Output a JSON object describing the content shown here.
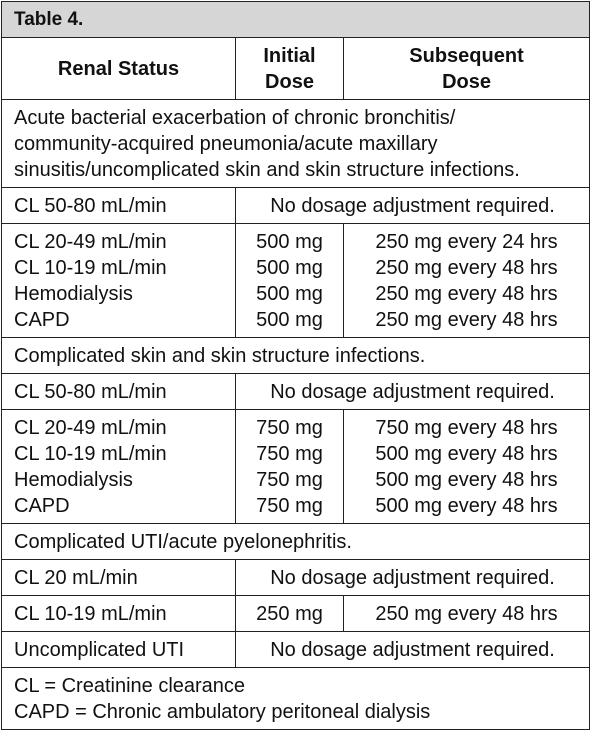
{
  "title": "Table 4.",
  "header": [
    [
      "Renal Status"
    ],
    [
      "Initial",
      "Dose"
    ],
    [
      "Subsequent",
      "Dose"
    ]
  ],
  "sections": [
    {
      "heading": [
        "Acute bacterial exacerbation of chronic bronchitis/",
        "community-acquired pneumonia/acute maxillary",
        "sinusitis/uncomplicated skin and skin structure infections."
      ],
      "rows": [
        {
          "status": [
            "CL 50-80 mL/min"
          ],
          "note": "No dosage adjustment required."
        },
        {
          "status": [
            "CL 20-49 mL/min",
            "CL 10-19 mL/min",
            "Hemodialysis",
            "CAPD"
          ],
          "initial": [
            "500 mg",
            "500 mg",
            "500 mg",
            "500 mg"
          ],
          "subsequent": [
            "250 mg every 24 hrs",
            "250 mg every 48 hrs",
            "250 mg every 48 hrs",
            "250 mg every 48 hrs"
          ]
        }
      ]
    },
    {
      "heading": [
        "Complicated skin and skin structure infections."
      ],
      "rows": [
        {
          "status": [
            "CL 50-80 mL/min"
          ],
          "note": "No dosage adjustment required."
        },
        {
          "status": [
            "CL 20-49 mL/min",
            "CL 10-19 mL/min",
            "Hemodialysis",
            "CAPD"
          ],
          "initial": [
            "750 mg",
            "750 mg",
            "750 mg",
            "750 mg"
          ],
          "subsequent": [
            "750 mg every 48 hrs",
            "500 mg every 48 hrs",
            "500 mg every 48 hrs",
            "500 mg every 48 hrs"
          ]
        }
      ]
    },
    {
      "heading": [
        "Complicated UTI/acute pyelonephritis."
      ],
      "rows": [
        {
          "status": [
            "CL 20 mL/min"
          ],
          "note": "No dosage adjustment required."
        },
        {
          "status": [
            "CL 10-19 mL/min"
          ],
          "initial": [
            "250 mg"
          ],
          "subsequent": [
            "250 mg every 48 hrs"
          ]
        },
        {
          "status": [
            "Uncomplicated UTI"
          ],
          "note": "No dosage adjustment required."
        }
      ]
    }
  ],
  "footnotes": [
    "CL = Creatinine clearance",
    "CAPD = Chronic ambulatory peritoneal dialysis"
  ]
}
